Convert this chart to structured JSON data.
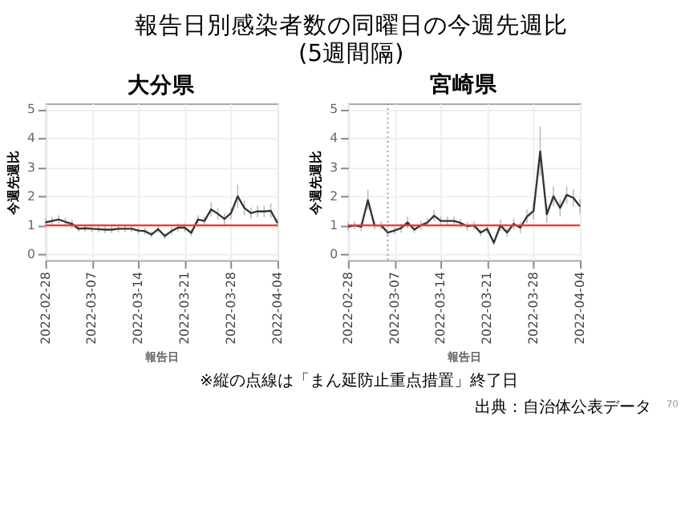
{
  "chart_data": [
    {
      "type": "line",
      "title": "大分県",
      "xlabel": "報告日",
      "ylabel": "今週先週比",
      "annotations": [
        "報告日別感染者数の同曜日の今週先週比\n(5週間隔)"
      ],
      "x": [
        "2022-02-28",
        "2022-03-01",
        "2022-03-02",
        "2022-03-03",
        "2022-03-04",
        "2022-03-05",
        "2022-03-06",
        "2022-03-07",
        "2022-03-08",
        "2022-03-09",
        "2022-03-10",
        "2022-03-11",
        "2022-03-12",
        "2022-03-13",
        "2022-03-14",
        "2022-03-15",
        "2022-03-16",
        "2022-03-17",
        "2022-03-18",
        "2022-03-19",
        "2022-03-20",
        "2022-03-21",
        "2022-03-22",
        "2022-03-23",
        "2022-03-24",
        "2022-03-25",
        "2022-03-26",
        "2022-03-27",
        "2022-03-28",
        "2022-03-29",
        "2022-03-30",
        "2022-03-31",
        "2022-04-01",
        "2022-04-02",
        "2022-04-03",
        "2022-04-04"
      ],
      "series": [
        {
          "color": "#333333",
          "values": [
            1.1,
            1.15,
            1.2,
            1.12,
            1.05,
            0.88,
            0.9,
            0.88,
            0.87,
            0.85,
            0.85,
            0.88,
            0.88,
            0.88,
            0.82,
            0.8,
            0.68,
            0.87,
            0.63,
            0.8,
            0.92,
            0.92,
            0.74,
            1.2,
            1.15,
            1.55,
            1.4,
            1.22,
            1.42,
            2.0,
            1.6,
            1.42,
            1.48,
            1.48,
            1.5,
            1.08
          ],
          "errors": [
            0.15,
            0.15,
            0.15,
            0.15,
            0.15,
            0.12,
            0.12,
            0.12,
            0.12,
            0.12,
            0.12,
            0.12,
            0.12,
            0.12,
            0.12,
            0.12,
            0.1,
            0.12,
            0.1,
            0.12,
            0.15,
            0.15,
            0.12,
            0.15,
            0.15,
            0.25,
            0.2,
            0.2,
            0.2,
            0.4,
            0.25,
            0.2,
            0.2,
            0.2,
            0.25,
            0.15
          ]
        }
      ],
      "xlim": [
        "2022-02-28",
        "2022-04-04"
      ],
      "xticks": [
        "2022-02-28",
        "2022-03-07",
        "2022-03-14",
        "2022-03-21",
        "2022-03-28",
        "2022-04-04"
      ],
      "ylim": [
        -0.2,
        5.2
      ],
      "yticks": [
        0,
        1,
        2,
        3,
        4,
        5
      ],
      "grid": true,
      "ref_lines": [
        {
          "axis": "y",
          "value": 1,
          "color": "#ff3333"
        }
      ]
    },
    {
      "type": "line",
      "title": "宮崎県",
      "xlabel": "報告日",
      "ylabel": "今週先週比",
      "annotations": [
        "※縦の点線は「まん延防止重点措置」終了日",
        "出典：自治体公表データ",
        "70"
      ],
      "x": [
        "2022-02-28",
        "2022-03-01",
        "2022-03-02",
        "2022-03-03",
        "2022-03-04",
        "2022-03-05",
        "2022-03-06",
        "2022-03-07",
        "2022-03-08",
        "2022-03-09",
        "2022-03-10",
        "2022-03-11",
        "2022-03-12",
        "2022-03-13",
        "2022-03-14",
        "2022-03-15",
        "2022-03-16",
        "2022-03-17",
        "2022-03-18",
        "2022-03-19",
        "2022-03-20",
        "2022-03-21",
        "2022-03-22",
        "2022-03-23",
        "2022-03-24",
        "2022-03-25",
        "2022-03-26",
        "2022-03-27",
        "2022-03-28",
        "2022-03-29",
        "2022-03-30",
        "2022-03-31",
        "2022-04-01",
        "2022-04-02",
        "2022-04-03",
        "2022-04-04"
      ],
      "series": [
        {
          "color": "#333333",
          "values": [
            0.95,
            1.0,
            0.95,
            1.87,
            1.0,
            1.0,
            0.75,
            0.82,
            0.9,
            1.1,
            0.85,
            1.0,
            1.1,
            1.33,
            1.15,
            1.15,
            1.15,
            1.08,
            0.97,
            1.0,
            0.75,
            0.88,
            0.4,
            1.0,
            0.75,
            1.05,
            0.92,
            1.3,
            1.5,
            3.55,
            1.38,
            2.0,
            1.6,
            2.05,
            1.95,
            1.65
          ],
          "errors": [
            0.15,
            0.15,
            0.15,
            0.35,
            0.15,
            0.15,
            0.12,
            0.12,
            0.15,
            0.2,
            0.12,
            0.15,
            0.15,
            0.2,
            0.15,
            0.15,
            0.15,
            0.15,
            0.15,
            0.15,
            0.12,
            0.15,
            0.1,
            0.2,
            0.15,
            0.2,
            0.2,
            0.25,
            0.3,
            0.85,
            0.3,
            0.35,
            0.3,
            0.3,
            0.3,
            0.25
          ]
        }
      ],
      "xlim": [
        "2022-02-28",
        "2022-04-04"
      ],
      "xticks": [
        "2022-02-28",
        "2022-03-07",
        "2022-03-14",
        "2022-03-21",
        "2022-03-28",
        "2022-04-04"
      ],
      "ylim": [
        -0.2,
        5.2
      ],
      "yticks": [
        0,
        1,
        2,
        3,
        4,
        5
      ],
      "grid": true,
      "ref_lines": [
        {
          "axis": "y",
          "value": 1,
          "color": "#ff3333"
        },
        {
          "axis": "x",
          "value": "2022-03-06",
          "color": "#999999",
          "line_style": "dotted"
        }
      ]
    }
  ]
}
